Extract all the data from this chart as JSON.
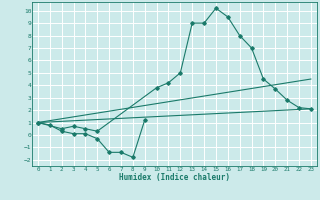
{
  "xlabel": "Humidex (Indice chaleur)",
  "bg_color": "#cceaea",
  "line_color": "#1a7a6a",
  "grid_color": "#ffffff",
  "xlim": [
    -0.5,
    23.5
  ],
  "ylim": [
    -2.5,
    10.7
  ],
  "xticks": [
    0,
    1,
    2,
    3,
    4,
    5,
    6,
    7,
    8,
    9,
    10,
    11,
    12,
    13,
    14,
    15,
    16,
    17,
    18,
    19,
    20,
    21,
    22,
    23
  ],
  "yticks": [
    -2,
    -1,
    0,
    1,
    2,
    3,
    4,
    5,
    6,
    7,
    8,
    9,
    10
  ],
  "series_low": {
    "x": [
      0,
      1,
      2,
      3,
      4,
      5,
      6,
      7,
      8,
      9
    ],
    "y": [
      1.0,
      0.8,
      0.3,
      0.1,
      0.1,
      -0.3,
      -1.4,
      -1.4,
      -1.8,
      1.2
    ]
  },
  "series_main": {
    "x": [
      0,
      2,
      3,
      4,
      5,
      10,
      11,
      12,
      13,
      14,
      15,
      16,
      17,
      18,
      19,
      20,
      21,
      22,
      23
    ],
    "y": [
      1.0,
      0.5,
      0.7,
      0.5,
      0.3,
      3.8,
      4.2,
      5.0,
      9.0,
      9.0,
      10.2,
      9.5,
      8.0,
      7.0,
      4.5,
      3.7,
      2.8,
      2.2,
      2.1
    ]
  },
  "series_line1": {
    "x": [
      0,
      23
    ],
    "y": [
      1.0,
      4.5
    ]
  },
  "series_line2": {
    "x": [
      0,
      23
    ],
    "y": [
      1.0,
      2.1
    ]
  }
}
